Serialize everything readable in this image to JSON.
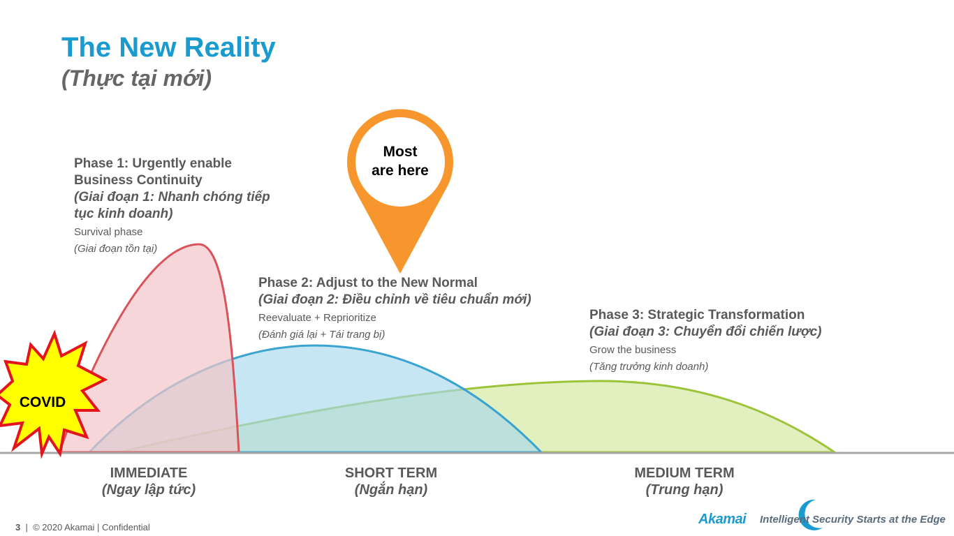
{
  "header": {
    "title": "The New Reality",
    "subtitle": "(Thực tại mới)"
  },
  "pin": {
    "line1": "Most",
    "line2": "are here",
    "color": "#f7962c"
  },
  "covid": {
    "label": "COVID",
    "burst_fill": "#ffff00",
    "burst_stroke": "#e3141b"
  },
  "phases": [
    {
      "title": "Phase 1: Urgently enable Business Continuity",
      "title_vi": "(Giai đoạn 1: Nhanh chóng tiếp tục kinh doanh)",
      "desc": "Survival phase",
      "desc_vi": "(Giai đoạn tồn tại)",
      "fill": "#f2c4c7",
      "stroke": "#d9535b"
    },
    {
      "title": "Phase 2: Adjust to the New Normal",
      "title_vi": "(Giai đoạn 2: Điều chỉnh về tiêu chuẩn mới)",
      "desc": "Reevaluate + Reprioritize",
      "desc_vi": "(Đánh giá lại + Tái trang bị)",
      "fill": "#a8d8ee",
      "stroke": "#3aa3cf"
    },
    {
      "title": "Phase 3: Strategic Transformation",
      "title_vi": "(Giai đoạn 3: Chuyển đổi chiến lược)",
      "desc": "Grow the business",
      "desc_vi": "(Tăng trưởng kinh doanh)",
      "fill": "#d6e8a3",
      "stroke": "#9cc43a"
    }
  ],
  "terms": [
    {
      "label": "IMMEDIATE",
      "label_vi": "(Ngay lập tức)"
    },
    {
      "label": "SHORT TERM",
      "label_vi": "(Ngắn hạn)"
    },
    {
      "label": "MEDIUM TERM",
      "label_vi": "(Trung hạn)"
    }
  ],
  "footer": {
    "page": "3",
    "text": "© 2020 Akamai | Confidential"
  },
  "brand": {
    "logo": "Akamai",
    "tagline": "Intelligent Security Starts at the Edge",
    "color": "#1a9bd0"
  }
}
